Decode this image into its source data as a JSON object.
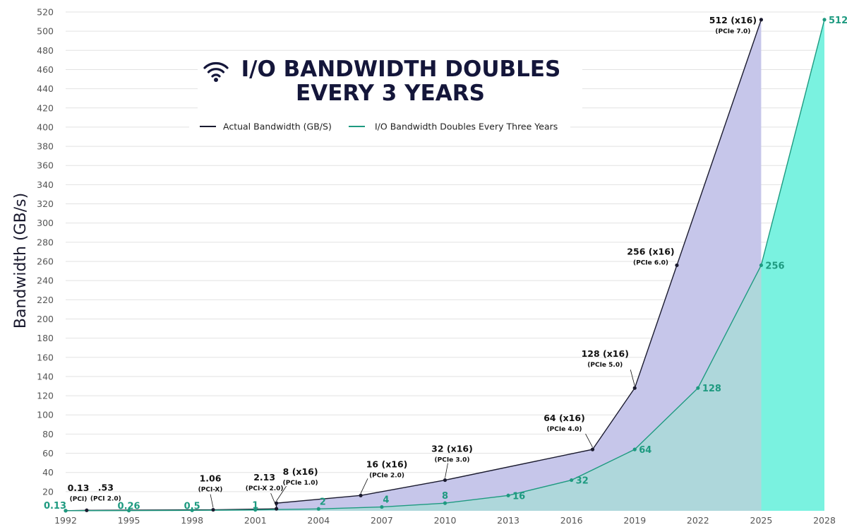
{
  "chart_data": {
    "type": "area",
    "title_lines": [
      "I/O BANDWIDTH DOUBLES",
      "EVERY 3 YEARS"
    ],
    "title_icon": "wifi-icon",
    "ylabel": "Bandwidth (GB/s)",
    "xlabel": "",
    "xlim": [
      1992,
      2028
    ],
    "ylim": [
      0,
      520
    ],
    "x_ticks": [
      1992,
      1995,
      1998,
      2001,
      2004,
      2007,
      2010,
      2013,
      2016,
      2019,
      2022,
      2025,
      2028
    ],
    "y_ticks": [
      20,
      40,
      60,
      80,
      100,
      120,
      140,
      160,
      180,
      200,
      220,
      240,
      260,
      280,
      300,
      320,
      340,
      360,
      380,
      400,
      420,
      440,
      460,
      480,
      500,
      520
    ],
    "grid": "horizontal",
    "legend_position": "top-center",
    "colors": {
      "actual_line": "#1a1a2e",
      "actual_fill": "#c6c6ea",
      "projected_line": "#1e9a80",
      "projected_fill": "#a5dcd6",
      "projected_fill_bright": "#7af2e0",
      "title": "#14163a"
    },
    "series": [
      {
        "name": "Actual Bandwidth (GB/S)",
        "points": [
          {
            "x": 1992,
            "y": 0.13,
            "label": "0.13",
            "sub": "(PCI)"
          },
          {
            "x": 1993,
            "y": 0.53,
            "label": ".53",
            "sub": "(PCI 2.0)"
          },
          {
            "x": 1999,
            "y": 1.06,
            "label": "1.06",
            "sub": "(PCI-X)"
          },
          {
            "x": 2002,
            "y": 2.13,
            "label": "2.13",
            "sub": "(PCI-X 2.0)"
          },
          {
            "x": 2002,
            "y": 8,
            "label": "8 (x16)",
            "sub": "(PCIe 1.0)"
          },
          {
            "x": 2006,
            "y": 16,
            "label": "16 (x16)",
            "sub": "(PCIe 2.0)"
          },
          {
            "x": 2010,
            "y": 32,
            "label": "32 (x16)",
            "sub": "(PCIe 3.0)"
          },
          {
            "x": 2017,
            "y": 64,
            "label": "64 (x16)",
            "sub": "(PCIe 4.0)"
          },
          {
            "x": 2019,
            "y": 128,
            "label": "128 (x16)",
            "sub": "(PCIe 5.0)"
          },
          {
            "x": 2021,
            "y": 256,
            "label": "256 (x16)",
            "sub": "(PCIe 6.0)"
          },
          {
            "x": 2025,
            "y": 512,
            "label": "512 (x16)",
            "sub": "(PCIe 7.0)"
          }
        ]
      },
      {
        "name": "I/O Bandwidth Doubles Every Three Years",
        "points": [
          {
            "x": 1992,
            "y": 0.13,
            "label": "0.13"
          },
          {
            "x": 1995,
            "y": 0.26,
            "label": "0.26"
          },
          {
            "x": 1998,
            "y": 0.5,
            "label": "0.5"
          },
          {
            "x": 2001,
            "y": 1,
            "label": "1"
          },
          {
            "x": 2004,
            "y": 2,
            "label": "2"
          },
          {
            "x": 2007,
            "y": 4,
            "label": "4"
          },
          {
            "x": 2010,
            "y": 8,
            "label": "8"
          },
          {
            "x": 2013,
            "y": 16,
            "label": "16"
          },
          {
            "x": 2016,
            "y": 32,
            "label": "32"
          },
          {
            "x": 2019,
            "y": 64,
            "label": "64"
          },
          {
            "x": 2022,
            "y": 128,
            "label": "128"
          },
          {
            "x": 2025,
            "y": 256,
            "label": "256"
          },
          {
            "x": 2028,
            "y": 512,
            "label": "512"
          }
        ]
      }
    ]
  }
}
